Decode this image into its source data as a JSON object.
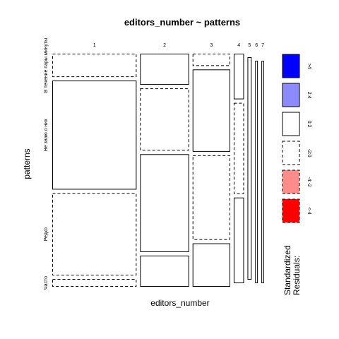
{
  "chart_data": {
    "type": "mosaic",
    "title": "editors_number ~ patterns",
    "xlabel": "editors_number",
    "ylabel": "patterns",
    "x_levels": [
      "1",
      "2",
      "3",
      "4",
      "5",
      "6",
      "7"
    ],
    "y_levels": [
      "В течение пары минуты",
      "Не знаю о них",
      "Редко",
      "Часто"
    ],
    "column_widths": [
      0.37,
      0.215,
      0.165,
      0.045,
      0.018,
      0.012,
      0.012
    ],
    "cells": [
      {
        "x": "1",
        "segments": [
          {
            "level": "В течение пары минуты",
            "share": 0.105,
            "residual": "-2:0"
          },
          {
            "level": "Не знаю о них",
            "share": 0.49,
            "residual": "0:2"
          },
          {
            "level": "Редко",
            "share": 0.37,
            "residual": "-2:0"
          },
          {
            "level": "Часто",
            "share": 0.035,
            "residual": "-2:0"
          }
        ]
      },
      {
        "x": "2",
        "segments": [
          {
            "level": "В течение пары минуты",
            "share": 0.14,
            "residual": "0:2"
          },
          {
            "level": "Не знаю о них",
            "share": 0.28,
            "residual": "-2:0"
          },
          {
            "level": "Редко",
            "share": 0.44,
            "residual": "0:2"
          },
          {
            "level": "Часто",
            "share": 0.14,
            "residual": "0:2"
          }
        ]
      },
      {
        "x": "3",
        "segments": [
          {
            "level": "В течение пары минуты",
            "share": 0.055,
            "residual": "-2:0"
          },
          {
            "level": "Не знаю о них",
            "share": 0.37,
            "residual": "0:2"
          },
          {
            "level": "Редко",
            "share": 0.38,
            "residual": "-2:0"
          },
          {
            "level": "Часто",
            "share": 0.195,
            "residual": "0:2"
          }
        ]
      },
      {
        "x": "4",
        "segments": [
          {
            "level": "В течение пары минуты",
            "share": 0.205,
            "residual": "0:2"
          },
          {
            "level": "Не знаю о них",
            "share": 0.41,
            "residual": "-2:0"
          },
          {
            "level": "Редко",
            "share": 0.385,
            "residual": "0:2"
          },
          {
            "level": "Часто",
            "share": 0.0,
            "residual": "-2:0"
          }
        ]
      },
      {
        "x": "5",
        "segments": [
          {
            "level": "В течение пары минуты",
            "share": 0.0,
            "residual": "-2:0"
          },
          {
            "level": "Не знаю о них",
            "share": 1.0,
            "residual": "0:2"
          },
          {
            "level": "Редко",
            "share": 0.0,
            "residual": "-2:0"
          },
          {
            "level": "Часто",
            "share": 0.0,
            "residual": "-2:0"
          }
        ]
      },
      {
        "x": "6",
        "segments": [
          {
            "level": "В течение пары минуты",
            "share": 0.0,
            "residual": "-2:0"
          },
          {
            "level": "Не знаю о них",
            "share": 0.0,
            "residual": "-2:0"
          },
          {
            "level": "Редко",
            "share": 1.0,
            "residual": "0:2"
          },
          {
            "level": "Часто",
            "share": 0.0,
            "residual": "-2:0"
          }
        ]
      },
      {
        "x": "7",
        "segments": [
          {
            "level": "В течение пары минуты",
            "share": 0.0,
            "residual": "-2:0"
          },
          {
            "level": "Не знаю о них",
            "share": 0.0,
            "residual": "-2:0"
          },
          {
            "level": "Редко",
            "share": 1.0,
            "residual": "0:2"
          },
          {
            "level": "Часто",
            "share": 0.0,
            "residual": "-2:0"
          }
        ]
      }
    ],
    "legend": {
      "title": "Standardized Residuals:",
      "placement": "right",
      "entries": [
        {
          "label": ">4",
          "fill": "#0000ff",
          "dashed": false
        },
        {
          "label": "2:4",
          "fill": "#8b8bff",
          "dashed": false
        },
        {
          "label": "0:2",
          "fill": "#ffffff",
          "dashed": false
        },
        {
          "label": "-2:0",
          "fill": "#ffffff",
          "dashed": true
        },
        {
          "label": "-4:-2",
          "fill": "#ff8b8b",
          "dashed": true
        },
        {
          "label": "<-4",
          "fill": "#ff0000",
          "dashed": true
        }
      ]
    }
  }
}
